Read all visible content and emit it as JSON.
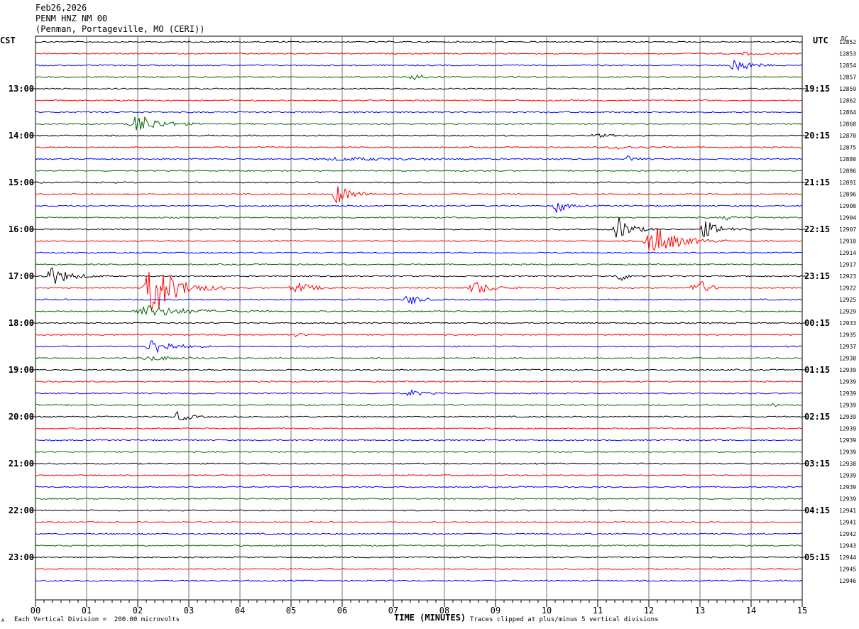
{
  "header": {
    "date": "Feb26,2026",
    "station": "PENM HNZ NM 00",
    "location": "(Penman, Portageville, MO (CERI))"
  },
  "left_tz": "CST",
  "right_tz": "UTC",
  "dc_label": "DC",
  "chart_data": {
    "type": "helicorder",
    "xlabel": "TIME (MINUTES)",
    "x_ticks": [
      "00",
      "01",
      "02",
      "03",
      "04",
      "05",
      "06",
      "07",
      "08",
      "09",
      "10",
      "11",
      "12",
      "13",
      "14",
      "15"
    ],
    "xlim": [
      0,
      15
    ],
    "left_hour_labels": [
      "13:00",
      "14:00",
      "15:00",
      "16:00",
      "17:00",
      "18:00",
      "19:00",
      "20:00",
      "21:00",
      "22:00",
      "23:00"
    ],
    "right_hour_labels": [
      "19:15",
      "20:15",
      "21:15",
      "22:15",
      "23:15",
      "00:15",
      "01:15",
      "02:15",
      "03:15",
      "04:15",
      "05:15"
    ],
    "dc_values": [
      "12852",
      "12853",
      "12854",
      "12857",
      "12859",
      "12862",
      "12864",
      "12868",
      "12870",
      "12875",
      "12880",
      "12886",
      "12891",
      "12896",
      "12900",
      "12904",
      "12907",
      "12910",
      "12914",
      "12917",
      "12923",
      "12922",
      "12925",
      "12929",
      "12933",
      "12935",
      "12937",
      "12938",
      "12939",
      "12939",
      "12939",
      "12939",
      "12939",
      "12939",
      "12939",
      "12939",
      "12938",
      "12939",
      "12939",
      "12939",
      "12941",
      "12941",
      "12942",
      "12943",
      "12944",
      "12945",
      "12946"
    ],
    "trace_colors": [
      "#000000",
      "#ff0000",
      "#0000ff",
      "#006600"
    ],
    "events": [
      {
        "trace": 2,
        "minute": 13.7,
        "amp": 12,
        "width": 0.5
      },
      {
        "trace": 1,
        "minute": 13.9,
        "amp": 2,
        "width": 0.6
      },
      {
        "trace": 3,
        "minute": 7.4,
        "amp": 5,
        "width": 0.5
      },
      {
        "trace": 7,
        "minute": 2.0,
        "amp": 14,
        "width": 0.8
      },
      {
        "trace": 8,
        "minute": 11.0,
        "amp": 2,
        "width": 0.8
      },
      {
        "trace": 9,
        "minute": 11.4,
        "amp": 2,
        "width": 1.2
      },
      {
        "trace": 10,
        "minute": 6.0,
        "amp": 2,
        "width": 3
      },
      {
        "trace": 10,
        "minute": 11.6,
        "amp": 5,
        "width": 0.3
      },
      {
        "trace": 13,
        "minute": 5.9,
        "amp": 14,
        "width": 0.6
      },
      {
        "trace": 14,
        "minute": 10.2,
        "amp": 14,
        "width": 0.3
      },
      {
        "trace": 15,
        "minute": 13.5,
        "amp": 3,
        "width": 0.5
      },
      {
        "trace": 16,
        "minute": 11.4,
        "amp": 18,
        "width": 0.5
      },
      {
        "trace": 16,
        "minute": 13.1,
        "amp": 12,
        "width": 0.6
      },
      {
        "trace": 17,
        "minute": 12.1,
        "amp": 22,
        "width": 0.9
      },
      {
        "trace": 20,
        "minute": 0.3,
        "amp": 14,
        "width": 0.7
      },
      {
        "trace": 20,
        "minute": 11.4,
        "amp": 8,
        "width": 0.4
      },
      {
        "trace": 21,
        "minute": 2.3,
        "amp": 40,
        "width": 0.9
      },
      {
        "trace": 21,
        "minute": 5.1,
        "amp": 8,
        "width": 0.6
      },
      {
        "trace": 21,
        "minute": 8.6,
        "amp": 10,
        "width": 0.6
      },
      {
        "trace": 21,
        "minute": 12.9,
        "amp": 18,
        "width": 0.4
      },
      {
        "trace": 22,
        "minute": 7.3,
        "amp": 9,
        "width": 0.4
      },
      {
        "trace": 23,
        "minute": 2.2,
        "amp": 8,
        "width": 1.5
      },
      {
        "trace": 25,
        "minute": 5.1,
        "amp": 3,
        "width": 0.3
      },
      {
        "trace": 26,
        "minute": 2.3,
        "amp": 12,
        "width": 0.7
      },
      {
        "trace": 27,
        "minute": 2.3,
        "amp": 3,
        "width": 1.2
      },
      {
        "trace": 30,
        "minute": 7.3,
        "amp": 5,
        "width": 0.5
      },
      {
        "trace": 31,
        "minute": 14.4,
        "amp": 2,
        "width": 0.3
      },
      {
        "trace": 32,
        "minute": 2.8,
        "amp": 8,
        "width": 0.4
      }
    ]
  },
  "footer": {
    "scale": "Each Vertical Division =  200.00 microvolts",
    "clip": "Traces clipped at plus/minus 5 vertical divisions",
    "corner": "A"
  }
}
